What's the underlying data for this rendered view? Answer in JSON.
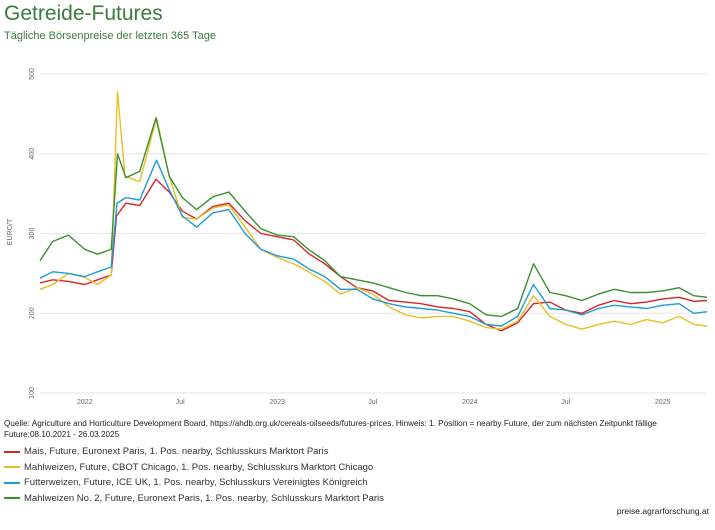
{
  "title": "Getreide-Futures",
  "subtitle": "Tägliche Börsenpreise der letzten 365 Tage",
  "source": "Quelle: Agriculture and Horticulture Development Board, https://ahdb.org.uk/cereals-oilseeds/futures-prices. Hinweis: 1. Position = nearby Future, der zum nächsten Zeitpunkt fällige Future;08.10.2021 - 26.03.2025",
  "footer": "preise.agrarforschung.at",
  "chart_data": {
    "type": "line",
    "title": "Getreide-Futures",
    "subtitle": "Tägliche Börsenpreise der letzten 365 Tage",
    "ylabel": "EURO/T",
    "xlabel": "",
    "ylim": [
      100,
      500
    ],
    "yticks": [
      100,
      200,
      300,
      400,
      500
    ],
    "xlim": [
      "2021-10-08",
      "2025-03-26"
    ],
    "xticks": [
      {
        "date": "2022-01-01",
        "label": "2022"
      },
      {
        "date": "2022-07-01",
        "label": "Jul"
      },
      {
        "date": "2023-01-01",
        "label": "2023"
      },
      {
        "date": "2023-07-01",
        "label": "Jul"
      },
      {
        "date": "2024-01-01",
        "label": "2024"
      },
      {
        "date": "2024-07-01",
        "label": "Jul"
      },
      {
        "date": "2025-01-01",
        "label": "2025"
      }
    ],
    "grid": true,
    "legend_position": "bottom",
    "series": [
      {
        "name": "Mais, Future, Euronext Paris, 1. Pos. nearby, Schlusskurs Marktort Paris",
        "color": "#d62728",
        "points": [
          [
            "2021-10-08",
            238
          ],
          [
            "2021-11-01",
            242
          ],
          [
            "2021-12-01",
            240
          ],
          [
            "2022-01-01",
            236
          ],
          [
            "2022-01-25",
            242
          ],
          [
            "2022-02-20",
            248
          ],
          [
            "2022-03-02",
            322
          ],
          [
            "2022-03-20",
            338
          ],
          [
            "2022-04-15",
            335
          ],
          [
            "2022-05-16",
            368
          ],
          [
            "2022-06-10",
            352
          ],
          [
            "2022-07-05",
            328
          ],
          [
            "2022-08-01",
            318
          ],
          [
            "2022-09-01",
            334
          ],
          [
            "2022-10-01",
            338
          ],
          [
            "2022-11-01",
            316
          ],
          [
            "2022-12-01",
            300
          ],
          [
            "2023-01-01",
            296
          ],
          [
            "2023-02-01",
            292
          ],
          [
            "2023-03-01",
            275
          ],
          [
            "2023-04-01",
            262
          ],
          [
            "2023-05-01",
            246
          ],
          [
            "2023-06-01",
            232
          ],
          [
            "2023-07-01",
            228
          ],
          [
            "2023-08-01",
            216
          ],
          [
            "2023-09-01",
            214
          ],
          [
            "2023-10-01",
            212
          ],
          [
            "2023-11-01",
            208
          ],
          [
            "2023-12-01",
            206
          ],
          [
            "2024-01-01",
            202
          ],
          [
            "2024-02-01",
            186
          ],
          [
            "2024-03-01",
            178
          ],
          [
            "2024-04-01",
            188
          ],
          [
            "2024-05-01",
            212
          ],
          [
            "2024-06-01",
            214
          ],
          [
            "2024-07-01",
            204
          ],
          [
            "2024-08-01",
            200
          ],
          [
            "2024-09-01",
            210
          ],
          [
            "2024-10-01",
            216
          ],
          [
            "2024-11-01",
            212
          ],
          [
            "2024-12-01",
            214
          ],
          [
            "2025-01-01",
            218
          ],
          [
            "2025-02-01",
            220
          ],
          [
            "2025-03-01",
            215
          ],
          [
            "2025-03-26",
            216
          ]
        ]
      },
      {
        "name": "Mahlweizen, Future, CBOT Chicago, 1. Pos. nearby, Schlusskurs Marktort Chicago",
        "color": "#e8c023",
        "points": [
          [
            "2021-10-08",
            230
          ],
          [
            "2021-11-01",
            236
          ],
          [
            "2021-12-01",
            250
          ],
          [
            "2022-01-01",
            245
          ],
          [
            "2022-01-25",
            236
          ],
          [
            "2022-02-20",
            248
          ],
          [
            "2022-03-04",
            478
          ],
          [
            "2022-03-18",
            372
          ],
          [
            "2022-04-15",
            365
          ],
          [
            "2022-05-17",
            445
          ],
          [
            "2022-06-10",
            372
          ],
          [
            "2022-07-05",
            320
          ],
          [
            "2022-08-01",
            318
          ],
          [
            "2022-09-01",
            332
          ],
          [
            "2022-10-01",
            336
          ],
          [
            "2022-11-01",
            308
          ],
          [
            "2022-12-01",
            280
          ],
          [
            "2023-01-01",
            270
          ],
          [
            "2023-02-01",
            262
          ],
          [
            "2023-03-01",
            252
          ],
          [
            "2023-04-01",
            240
          ],
          [
            "2023-05-01",
            224
          ],
          [
            "2023-06-01",
            232
          ],
          [
            "2023-07-01",
            224
          ],
          [
            "2023-08-01",
            208
          ],
          [
            "2023-09-01",
            198
          ],
          [
            "2023-10-01",
            194
          ],
          [
            "2023-11-01",
            196
          ],
          [
            "2023-12-01",
            196
          ],
          [
            "2024-01-01",
            190
          ],
          [
            "2024-02-01",
            182
          ],
          [
            "2024-03-01",
            180
          ],
          [
            "2024-04-01",
            190
          ],
          [
            "2024-05-01",
            222
          ],
          [
            "2024-06-01",
            196
          ],
          [
            "2024-07-01",
            186
          ],
          [
            "2024-08-01",
            180
          ],
          [
            "2024-09-01",
            186
          ],
          [
            "2024-10-01",
            190
          ],
          [
            "2024-11-01",
            186
          ],
          [
            "2024-12-01",
            192
          ],
          [
            "2025-01-01",
            188
          ],
          [
            "2025-02-01",
            196
          ],
          [
            "2025-03-01",
            186
          ],
          [
            "2025-03-26",
            184
          ]
        ]
      },
      {
        "name": "Futterweizen, Future, ICE UK, 1. Pos. nearby, Schlusskurs Vereinigtes Königreich",
        "color": "#1f9bd7",
        "points": [
          [
            "2021-10-08",
            244
          ],
          [
            "2021-11-01",
            252
          ],
          [
            "2021-12-01",
            250
          ],
          [
            "2022-01-01",
            246
          ],
          [
            "2022-01-25",
            252
          ],
          [
            "2022-02-20",
            258
          ],
          [
            "2022-03-03",
            338
          ],
          [
            "2022-03-20",
            345
          ],
          [
            "2022-04-15",
            342
          ],
          [
            "2022-05-17",
            392
          ],
          [
            "2022-06-10",
            355
          ],
          [
            "2022-07-05",
            322
          ],
          [
            "2022-08-01",
            308
          ],
          [
            "2022-09-01",
            326
          ],
          [
            "2022-10-01",
            330
          ],
          [
            "2022-11-01",
            300
          ],
          [
            "2022-12-01",
            280
          ],
          [
            "2023-01-01",
            272
          ],
          [
            "2023-02-01",
            268
          ],
          [
            "2023-03-01",
            256
          ],
          [
            "2023-04-01",
            246
          ],
          [
            "2023-05-01",
            230
          ],
          [
            "2023-06-01",
            230
          ],
          [
            "2023-07-01",
            218
          ],
          [
            "2023-08-01",
            212
          ],
          [
            "2023-09-01",
            208
          ],
          [
            "2023-10-01",
            206
          ],
          [
            "2023-11-01",
            204
          ],
          [
            "2023-12-01",
            200
          ],
          [
            "2024-01-01",
            196
          ],
          [
            "2024-02-01",
            186
          ],
          [
            "2024-03-01",
            184
          ],
          [
            "2024-04-01",
            196
          ],
          [
            "2024-05-01",
            236
          ],
          [
            "2024-06-01",
            206
          ],
          [
            "2024-07-01",
            204
          ],
          [
            "2024-08-01",
            198
          ],
          [
            "2024-09-01",
            206
          ],
          [
            "2024-10-01",
            210
          ],
          [
            "2024-11-01",
            208
          ],
          [
            "2024-12-01",
            206
          ],
          [
            "2025-01-01",
            210
          ],
          [
            "2025-02-01",
            212
          ],
          [
            "2025-03-01",
            200
          ],
          [
            "2025-03-26",
            202
          ]
        ]
      },
      {
        "name": "Mahlweizen No. 2, Future, Euronext Paris, 1. Pos. nearby, Schlusskurs Marktort Paris",
        "color": "#3a8f2e",
        "points": [
          [
            "2021-10-08",
            266
          ],
          [
            "2021-11-01",
            290
          ],
          [
            "2021-12-01",
            298
          ],
          [
            "2022-01-01",
            280
          ],
          [
            "2022-01-25",
            274
          ],
          [
            "2022-02-20",
            280
          ],
          [
            "2022-03-04",
            400
          ],
          [
            "2022-03-20",
            370
          ],
          [
            "2022-04-15",
            378
          ],
          [
            "2022-05-16",
            445
          ],
          [
            "2022-06-10",
            372
          ],
          [
            "2022-07-05",
            345
          ],
          [
            "2022-08-01",
            330
          ],
          [
            "2022-09-01",
            346
          ],
          [
            "2022-10-01",
            352
          ],
          [
            "2022-11-01",
            328
          ],
          [
            "2022-12-01",
            306
          ],
          [
            "2023-01-01",
            298
          ],
          [
            "2023-02-01",
            296
          ],
          [
            "2023-03-01",
            280
          ],
          [
            "2023-04-01",
            266
          ],
          [
            "2023-05-01",
            246
          ],
          [
            "2023-06-01",
            242
          ],
          [
            "2023-07-01",
            238
          ],
          [
            "2023-08-01",
            232
          ],
          [
            "2023-09-01",
            226
          ],
          [
            "2023-10-01",
            222
          ],
          [
            "2023-11-01",
            222
          ],
          [
            "2023-12-01",
            218
          ],
          [
            "2024-01-01",
            212
          ],
          [
            "2024-02-01",
            198
          ],
          [
            "2024-03-01",
            196
          ],
          [
            "2024-04-01",
            206
          ],
          [
            "2024-05-01",
            262
          ],
          [
            "2024-06-01",
            226
          ],
          [
            "2024-07-01",
            222
          ],
          [
            "2024-08-01",
            216
          ],
          [
            "2024-09-01",
            224
          ],
          [
            "2024-10-01",
            230
          ],
          [
            "2024-11-01",
            226
          ],
          [
            "2024-12-01",
            226
          ],
          [
            "2025-01-01",
            228
          ],
          [
            "2025-02-01",
            232
          ],
          [
            "2025-03-01",
            222
          ],
          [
            "2025-03-26",
            220
          ]
        ]
      }
    ]
  }
}
